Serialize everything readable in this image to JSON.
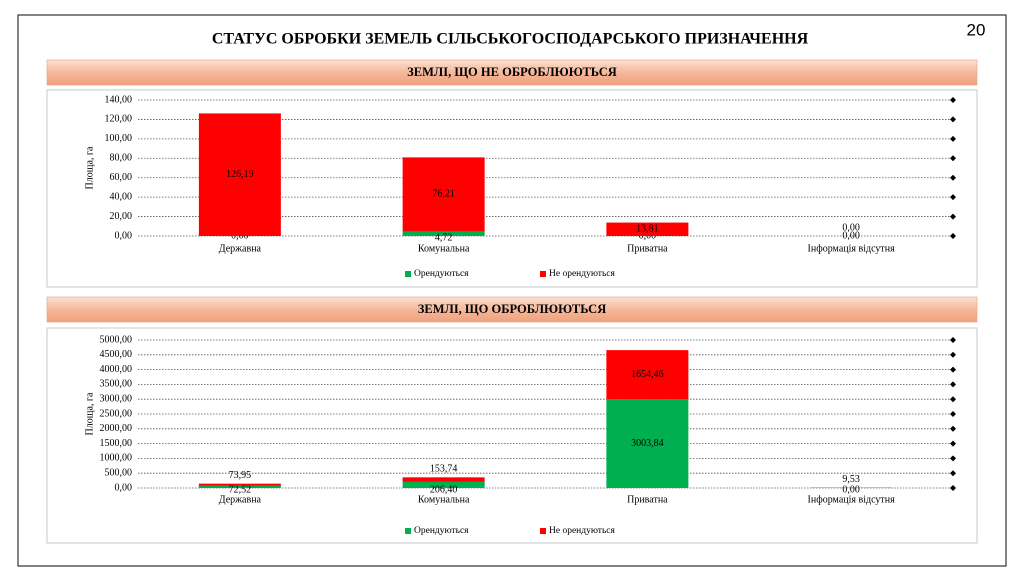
{
  "title": "СТАТУС ОБРОБКИ ЗЕМЕЛЬ СІЛЬСЬКОГОСПОДАРСЬКОГО ПРИЗНАЧЕННЯ",
  "page_number": "20",
  "chart_data": [
    {
      "type": "bar",
      "stacked": true,
      "title": "ЗЕМЛІ, ЩО НЕ ОБРОБЛЮЮТЬСЯ",
      "y_label": "Площа, га",
      "categories": [
        "Державна",
        "Комунальна",
        "Приватна",
        "Інформація відсутня"
      ],
      "series": [
        {
          "name": "Орендуються",
          "color": "#00b050",
          "values": [
            0,
            4.72,
            0,
            0
          ],
          "value_labels": [
            "0,00",
            "4,72",
            "0,00",
            "0,00"
          ]
        },
        {
          "name": "Не орендуються",
          "color": "#ff0000",
          "values": [
            126.19,
            76.21,
            13.81,
            0
          ],
          "value_labels": [
            "126,19",
            "76,21",
            "13,81",
            "0,00"
          ]
        }
      ],
      "ylim": [
        0,
        140
      ],
      "yticks": [
        {
          "value": 0,
          "label": "0,00"
        },
        {
          "value": 20,
          "label": "20,00"
        },
        {
          "value": 40,
          "label": "40,00"
        },
        {
          "value": 60,
          "label": "60,00"
        },
        {
          "value": 80,
          "label": "80,00"
        },
        {
          "value": 100,
          "label": "100,00"
        },
        {
          "value": 120,
          "label": "120,00"
        },
        {
          "value": 140,
          "label": "140,00"
        }
      ],
      "grid": true,
      "legend": "bottom"
    },
    {
      "type": "bar",
      "stacked": true,
      "title": "ЗЕМЛІ, ЩО ОБРОБЛЮЮТЬСЯ",
      "y_label": "Площа, га",
      "categories": [
        "Державна",
        "Комунальна",
        "Приватна",
        "Інформація відсутня"
      ],
      "series": [
        {
          "name": "Орендуються",
          "color": "#00b050",
          "values": [
            72.52,
            206.4,
            3003.84,
            0
          ],
          "value_labels": [
            "72,52",
            "206,40",
            "3003,84",
            "0,00"
          ]
        },
        {
          "name": "Не орендуються",
          "color": "#ff0000",
          "values": [
            73.95,
            153.74,
            1654.46,
            9.53
          ],
          "value_labels": [
            "73,95",
            "153,74",
            "1654,46",
            "9,53"
          ]
        }
      ],
      "ylim": [
        0,
        5000
      ],
      "yticks": [
        {
          "value": 0,
          "label": "0,00"
        },
        {
          "value": 500,
          "label": "500,00"
        },
        {
          "value": 1000,
          "label": "1000,00"
        },
        {
          "value": 1500,
          "label": "1500,00"
        },
        {
          "value": 2000,
          "label": "2000,00"
        },
        {
          "value": 2500,
          "label": "2500,00"
        },
        {
          "value": 3000,
          "label": "3000,00"
        },
        {
          "value": 3500,
          "label": "3500,00"
        },
        {
          "value": 4000,
          "label": "4000,00"
        },
        {
          "value": 4500,
          "label": "4500,00"
        },
        {
          "value": 5000,
          "label": "5000,00"
        }
      ],
      "grid": true,
      "legend": "bottom"
    }
  ]
}
